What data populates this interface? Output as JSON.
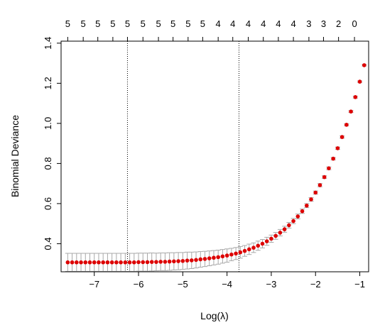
{
  "chart_data": {
    "type": "scatter",
    "title": "",
    "xlabel": "Log(λ)",
    "ylabel": "Binomial Deviance",
    "xlim": [
      -7.75,
      -0.8
    ],
    "ylim": [
      0.26,
      1.41
    ],
    "x_ticks": [
      -7,
      -6,
      -5,
      -4,
      -3,
      -2,
      -1
    ],
    "x_tick_labels": [
      "−7",
      "−6",
      "−5",
      "−4",
      "−3",
      "−2",
      "−1"
    ],
    "y_ticks": [
      0.4,
      0.6,
      0.8,
      1.0,
      1.2,
      1.4
    ],
    "y_tick_labels": [
      "0.4",
      "0.6",
      "0.8",
      "1.0",
      "1.2",
      "1.4"
    ],
    "top_axis": {
      "positions": [
        -7.6,
        -7.25,
        -6.92,
        -6.58,
        -6.25,
        -5.9,
        -5.55,
        -5.22,
        -4.88,
        -4.55,
        -4.2,
        -3.87,
        -3.52,
        -3.18,
        -2.84,
        -2.5,
        -2.15,
        -1.82,
        -1.48,
        -1.12
      ],
      "labels": [
        "5",
        "5",
        "5",
        "5",
        "5",
        "5",
        "5",
        "5",
        "5",
        "5",
        "4",
        "4",
        "4",
        "4",
        "4",
        "4",
        "3",
        "3",
        "2",
        "0"
      ]
    },
    "vlines": [
      -6.25,
      -3.73
    ],
    "grid": false,
    "point_color": "#dd0000",
    "errorbar_color": "#a8a8a8",
    "series": [
      {
        "x": [
          -7.6,
          -7.5,
          -7.4,
          -7.3,
          -7.2,
          -7.1,
          -7.0,
          -6.9,
          -6.8,
          -6.7,
          -6.6,
          -6.5,
          -6.4,
          -6.3,
          -6.2,
          -6.1,
          -6.0,
          -5.9,
          -5.8,
          -5.7,
          -5.6,
          -5.5,
          -5.4,
          -5.3,
          -5.2,
          -5.1,
          -5.0,
          -4.9,
          -4.8,
          -4.7,
          -4.6,
          -4.5,
          -4.4,
          -4.3,
          -4.2,
          -4.1,
          -4.0,
          -3.9,
          -3.8,
          -3.7,
          -3.6,
          -3.5,
          -3.4,
          -3.3,
          -3.2,
          -3.1,
          -3.0,
          -2.9,
          -2.8,
          -2.7,
          -2.6,
          -2.5,
          -2.4,
          -2.3,
          -2.2,
          -2.1,
          -2.0,
          -1.9,
          -1.8,
          -1.7,
          -1.6,
          -1.5,
          -1.4,
          -1.3,
          -1.2,
          -1.1,
          -1.0,
          -0.9
        ],
        "y": [
          0.307,
          0.307,
          0.307,
          0.307,
          0.307,
          0.307,
          0.307,
          0.307,
          0.307,
          0.307,
          0.307,
          0.307,
          0.307,
          0.307,
          0.307,
          0.307,
          0.308,
          0.308,
          0.308,
          0.309,
          0.309,
          0.31,
          0.31,
          0.311,
          0.312,
          0.313,
          0.314,
          0.316,
          0.317,
          0.319,
          0.322,
          0.324,
          0.327,
          0.33,
          0.333,
          0.337,
          0.341,
          0.346,
          0.351,
          0.357,
          0.364,
          0.372,
          0.38,
          0.39,
          0.4,
          0.412,
          0.425,
          0.439,
          0.455,
          0.472,
          0.492,
          0.513,
          0.536,
          0.562,
          0.59,
          0.621,
          0.655,
          0.692,
          0.732,
          0.776,
          0.824,
          0.876,
          0.932,
          0.993,
          1.059,
          1.131,
          1.208,
          1.29
        ],
        "err": [
          0.045,
          0.045,
          0.045,
          0.045,
          0.045,
          0.045,
          0.045,
          0.045,
          0.045,
          0.045,
          0.045,
          0.045,
          0.045,
          0.045,
          0.045,
          0.045,
          0.045,
          0.045,
          0.045,
          0.045,
          0.044,
          0.044,
          0.044,
          0.044,
          0.043,
          0.043,
          0.042,
          0.042,
          0.041,
          0.04,
          0.039,
          0.038,
          0.037,
          0.036,
          0.035,
          0.034,
          0.033,
          0.031,
          0.03,
          0.029,
          0.027,
          0.026,
          0.024,
          0.023,
          0.021,
          0.02,
          0.018,
          0.017,
          0.016,
          0.015,
          0.014,
          0.013,
          0.012,
          0.011,
          0.01,
          0.009,
          0.008,
          0.008,
          0.007,
          0.007,
          0.006,
          0.006,
          0.006,
          0.005,
          0.005,
          0.005,
          0.004,
          0.004
        ]
      }
    ]
  }
}
